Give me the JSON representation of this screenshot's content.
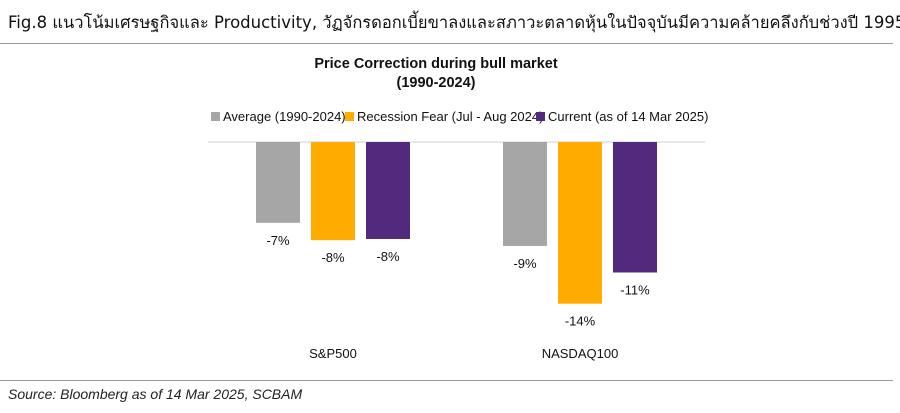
{
  "figure": {
    "title": "Fig.8 แนวโน้มเศรษฐกิจและ Productivity, วัฏจักรดอกเบี้ยขาลงและสภาวะตลาดหุ้นในปัจจุบันมีความคล้ายคลึงกับช่วงปี 1995",
    "source": "Source: Bloomberg as of 14 Mar 2025, SCBAM"
  },
  "chart_data": {
    "type": "bar",
    "title": "Price Correction during bull market",
    "subtitle": "(1990-2024)",
    "categories": [
      "S&P500",
      "NASDAQ100"
    ],
    "series": [
      {
        "name": "Average (1990-2024)",
        "color": "#a6a6a6",
        "values": [
          -7,
          -9
        ],
        "labels": [
          "-7%",
          "-9%"
        ]
      },
      {
        "name": "Recession Fear (Jul - Aug 2024)",
        "color": "#ffab00",
        "values": [
          -8.5,
          -14
        ],
        "labels": [
          "-8%",
          "-14%"
        ]
      },
      {
        "name": "Current (as of 14 Mar 2025)",
        "color": "#512a7e",
        "values": [
          -8.4,
          -11.3
        ],
        "labels": [
          "-8%",
          "-11%"
        ]
      }
    ],
    "ylim": [
      -14.2,
      0
    ],
    "legend": "top",
    "grid": false,
    "xlabel": "",
    "ylabel": ""
  }
}
